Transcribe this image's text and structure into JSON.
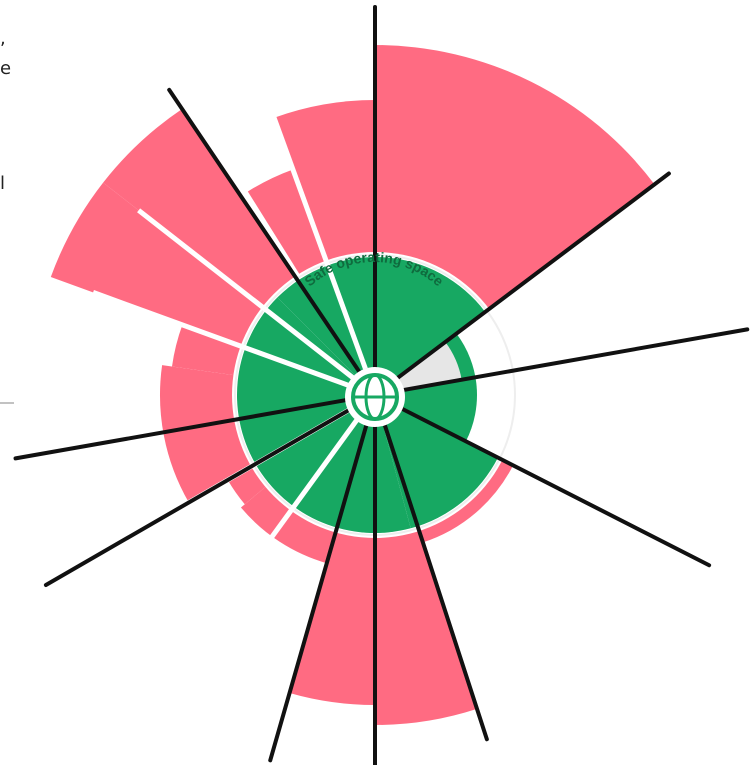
{
  "diagram": {
    "safe_space_label": "Safe operating space",
    "edge_fragments": [
      ",",
      "e",
      "l"
    ],
    "icon": "globe-icon",
    "colors": {
      "overshoot": "#ff6b82",
      "safe": "#17a862",
      "safe_label": "#0f6b3e",
      "gap": "#e6e6e6",
      "line": "#111111",
      "background": "#ffffff"
    }
  }
}
